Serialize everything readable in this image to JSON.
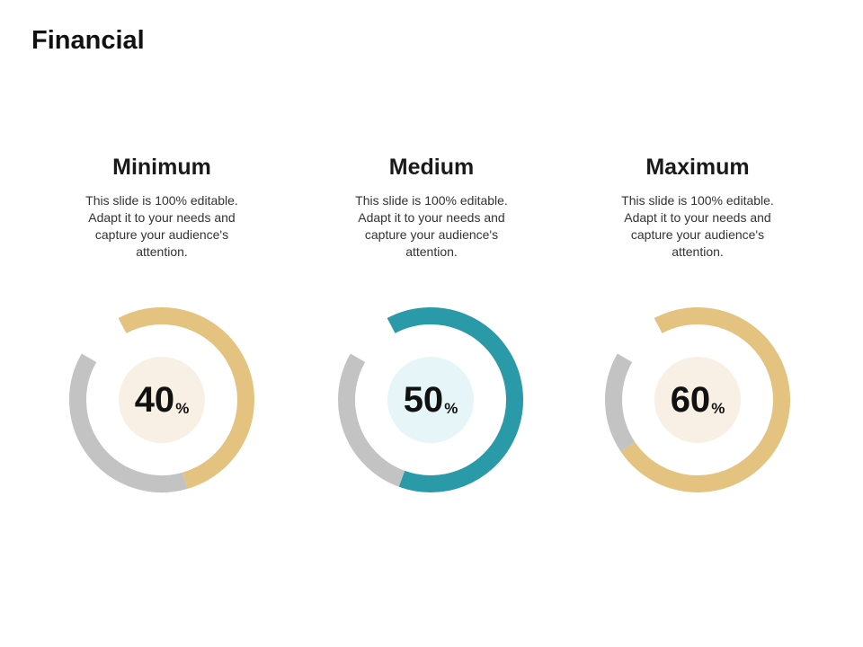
{
  "page": {
    "title": "Financial"
  },
  "colors": {
    "track": "#c3c3c3",
    "tan": "#e4c27f",
    "teal": "#2b9aa8",
    "inner_tan": "#f8f0e4",
    "inner_teal": "#e6f6f8"
  },
  "items": [
    {
      "heading": "Minimum",
      "description": "This slide is 100% editable. Adapt it to your needs and capture your audience's attention.",
      "value": 40,
      "value_text": "40",
      "unit": "%",
      "accent": "#e4c27f",
      "inner": "#f8f0e4"
    },
    {
      "heading": "Medium",
      "description": "This slide is 100% editable. Adapt it to your needs and capture your audience's attention.",
      "value": 50,
      "value_text": "50",
      "unit": "%",
      "accent": "#2b9aa8",
      "inner": "#e6f6f8"
    },
    {
      "heading": "Maximum",
      "description": "This slide is 100% editable. Adapt it to your needs and capture your audience's attention.",
      "value": 60,
      "value_text": "60",
      "unit": "%",
      "accent": "#e4c27f",
      "inner": "#f8f0e4"
    }
  ]
}
